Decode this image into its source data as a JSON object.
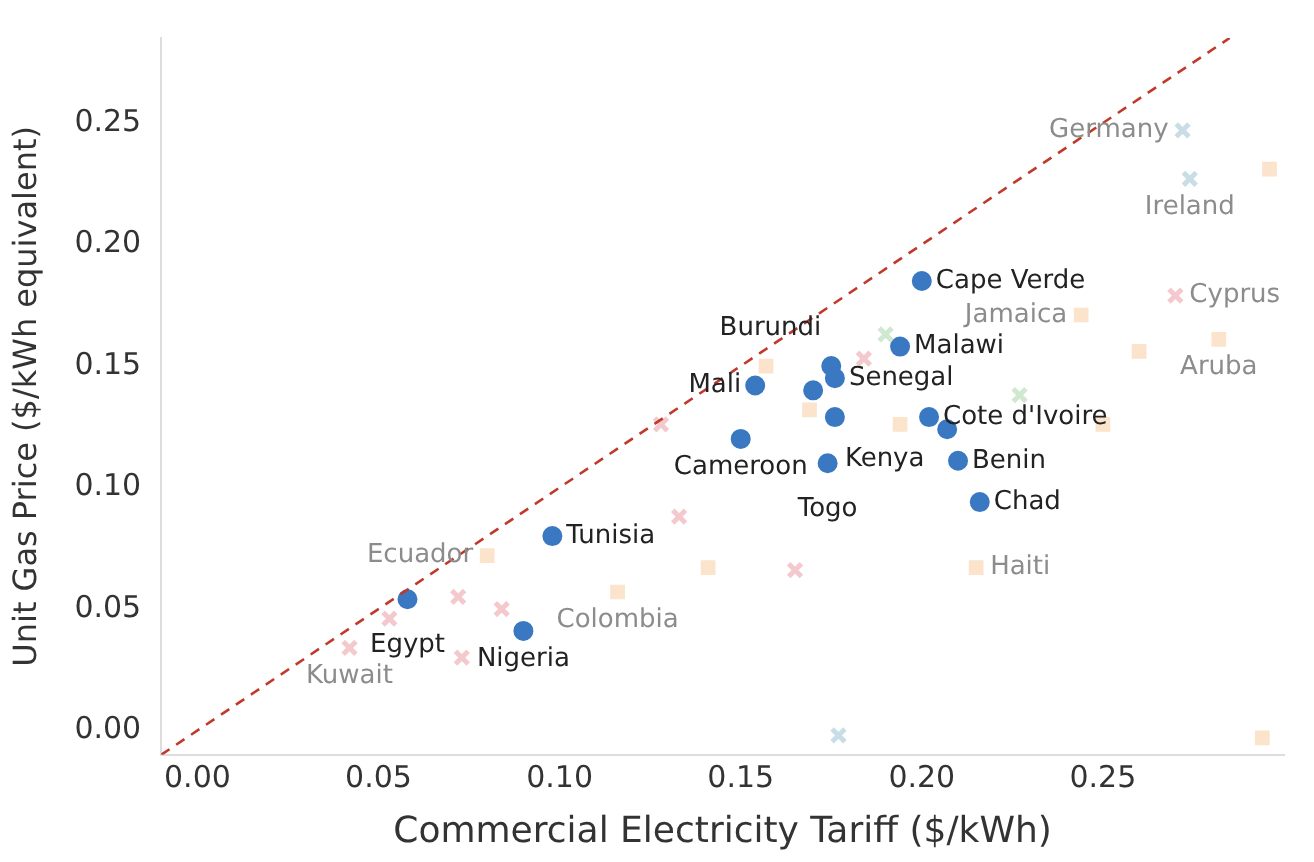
{
  "chart_data": {
    "type": "scatter",
    "xlabel": "Commercial Electricity Tariff ($/kWh)",
    "ylabel": "Unit Gas Price ($/kWh equivalent)",
    "xlim": [
      -0.01,
      0.3
    ],
    "xticks": [
      {
        "value": 0,
        "label": "0.00"
      },
      {
        "value": 0.05,
        "label": "0.05"
      },
      {
        "value": 0.1,
        "label": "0.10"
      },
      {
        "value": 0.15,
        "label": "0.15"
      },
      {
        "value": 0.2,
        "label": "0.20"
      },
      {
        "value": 0.25,
        "label": "0.25"
      }
    ],
    "ylim": [
      -0.01,
      0.285
    ],
    "yticks": [
      {
        "value": 0,
        "label": "0.00"
      },
      {
        "value": 0.05,
        "label": "0.05"
      },
      {
        "value": 0.1,
        "label": "0.10"
      },
      {
        "value": 0.15,
        "label": "0.15"
      },
      {
        "value": 0.2,
        "label": "0.20"
      },
      {
        "value": 0.25,
        "label": "0.25"
      }
    ],
    "legend": false,
    "marker": "circle",
    "series": [
      {
        "type": "line",
        "color": "#c0392b",
        "line_style": "dashed",
        "marker": "none",
        "x": [
          -0.01,
          0.285
        ],
        "values": [
          -0.01,
          0.285
        ]
      },
      {
        "color": "#f4c9cd",
        "marker": "cross",
        "x": [
          0.27,
          0.184,
          0.165,
          0.072,
          0.084,
          0.133,
          0.053,
          0.042,
          0.073,
          0.128
        ],
        "values": [
          0.179,
          0.153,
          0.066,
          0.055,
          0.05,
          0.088,
          0.046,
          0.034,
          0.03,
          0.126
        ],
        "value_labels": [
          "Cyprus",
          null,
          null,
          null,
          null,
          null,
          null,
          "Kuwait",
          null,
          null
        ]
      },
      {
        "color": "#fbe3cc",
        "marker": "square",
        "x": [
          0.296,
          0.244,
          0.282,
          0.26,
          0.25,
          0.157,
          0.169,
          0.194,
          0.215,
          0.294,
          0.08,
          0.116,
          0.141
        ],
        "values": [
          0.231,
          0.171,
          0.161,
          0.156,
          0.126,
          0.15,
          0.132,
          0.126,
          0.067,
          -0.003,
          0.072,
          0.057,
          0.067
        ],
        "value_labels": [
          null,
          "Jamaica",
          "Aruba",
          null,
          null,
          null,
          null,
          null,
          "Haiti",
          null,
          "Ecuador",
          "Colombia",
          null
        ]
      },
      {
        "color": "#c8dde6",
        "marker": "cross",
        "x": [
          0.272,
          0.274,
          0.177
        ],
        "values": [
          0.247,
          0.227,
          -0.002
        ],
        "value_labels": [
          "Germany",
          "Ireland",
          null
        ]
      },
      {
        "color": "#cfe8cf",
        "marker": "cross",
        "x": [
          0.19,
          0.227
        ],
        "values": [
          0.163,
          0.138
        ]
      },
      {
        "color": "#3a78c2",
        "x": [
          0.058,
          0.09,
          0.098,
          0.15,
          0.154,
          0.17,
          0.175,
          0.176,
          0.176,
          0.174,
          0.2,
          0.194,
          0.202,
          0.207,
          0.21,
          0.216
        ],
        "values": [
          0.054,
          0.041,
          0.08,
          0.12,
          0.142,
          0.14,
          0.15,
          0.145,
          0.129,
          0.11,
          0.185,
          0.158,
          0.129,
          0.124,
          0.111,
          0.094
        ],
        "value_labels": [
          "Egypt",
          "Nigeria",
          "Tunisia",
          "Cameroon",
          "Mali",
          null,
          "Burundi",
          "Senegal",
          "Kenya",
          "Togo",
          "Cape Verde",
          "Malawi",
          "Cote d'Ivoire",
          null,
          "Benin",
          "Chad"
        ]
      }
    ]
  }
}
